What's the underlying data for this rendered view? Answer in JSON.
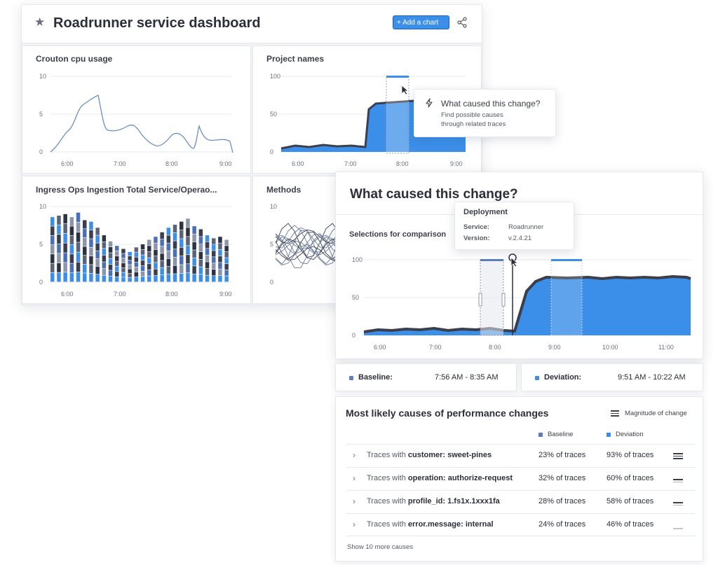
{
  "dashboard": {
    "title": "Roadrunner service dashboard",
    "add_chart_label": "Add a chart",
    "star_icon": "star-icon",
    "share_icon": "share-icon"
  },
  "panels": {
    "cpu": {
      "title": "Crouton cpu usage",
      "y_ticks": [
        "10",
        "5",
        "0"
      ],
      "x_ticks": [
        "6:00",
        "7:00",
        "8:00",
        "9:00"
      ]
    },
    "project": {
      "title": "Project names",
      "y_ticks": [
        "100",
        "50",
        "0"
      ],
      "x_ticks": [
        "6:00",
        "7:00",
        "8:00",
        "9:00"
      ]
    },
    "ingress": {
      "title": "Ingress Ops Ingestion Total Service/Operao...",
      "y_ticks": [
        "10",
        "5",
        "0"
      ],
      "x_ticks": [
        "6:00",
        "7:00",
        "8:00",
        "9:00"
      ]
    },
    "methods": {
      "title": "Methods",
      "y_ticks": [
        "10",
        "5",
        "0"
      ]
    }
  },
  "tooltip_small": {
    "title": "What caused this change?",
    "line1": "Find possible causes",
    "line2": "through related traces"
  },
  "analysis": {
    "title": "What caused this change?",
    "selections_label": "Selections for comparison",
    "y_ticks": [
      "100",
      "50",
      "0"
    ],
    "x_ticks": [
      "6:00",
      "7:00",
      "8:00",
      "9:00",
      "10:00",
      "11:00"
    ],
    "deployment": {
      "title": "Deployment",
      "service_label": "Service:",
      "service_value": "Roadrunner",
      "version_label": "Version:",
      "version_value": "v.2.4.21"
    }
  },
  "baseline": {
    "label": "Baseline:",
    "range": "7:56 AM - 8:35 AM"
  },
  "deviation": {
    "label": "Deviation:",
    "range": "9:51 AM - 10:22 AM"
  },
  "causes": {
    "title": "Most likely causes of performance changes",
    "magnitude_label": "Magnitude of change",
    "col_baseline": "Baseline",
    "col_deviation": "Deviation",
    "prefix": "Traces with",
    "rows": [
      {
        "key": "customer: sweet-pines",
        "baseline": "23% of traces",
        "deviation": "93% of traces"
      },
      {
        "key": "operation: authorize-request",
        "baseline": "32% of traces",
        "deviation": "60% of traces"
      },
      {
        "key": "profile_id: 1.fs1x.1xxx1fa",
        "baseline": "28% of traces",
        "deviation": "58% of traces"
      },
      {
        "key": "error.message: internal",
        "baseline": "24% of traces",
        "deviation": "46% of traces"
      }
    ],
    "show_more": "Show 10 more causes"
  },
  "colors": {
    "accent": "#3b8fe8",
    "baseline": "#5a7fc0",
    "deviation": "#3b8fe8"
  }
}
